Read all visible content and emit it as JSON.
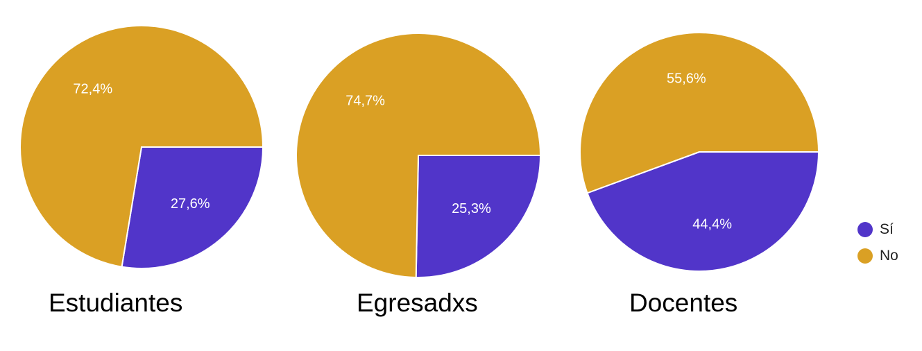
{
  "chart_data": [
    {
      "type": "pie",
      "title": "Estudiantes",
      "categories": [
        "Sí",
        "No"
      ],
      "values": [
        27.6,
        72.4
      ],
      "labels": [
        "27,6%",
        "72,4%"
      ]
    },
    {
      "type": "pie",
      "title": "Egresadxs",
      "categories": [
        "Sí",
        "No"
      ],
      "values": [
        25.3,
        74.7
      ],
      "labels": [
        "25,3%",
        "74,7%"
      ]
    },
    {
      "type": "pie",
      "title": "Docentes",
      "categories": [
        "Sí",
        "No"
      ],
      "values": [
        44.4,
        55.6
      ],
      "labels": [
        "44,4%",
        "55,6%"
      ]
    }
  ],
  "legend": {
    "placement": "right",
    "items": [
      {
        "label": "Sí",
        "color": "#5135c9"
      },
      {
        "label": "No",
        "color": "#daa024"
      }
    ]
  }
}
